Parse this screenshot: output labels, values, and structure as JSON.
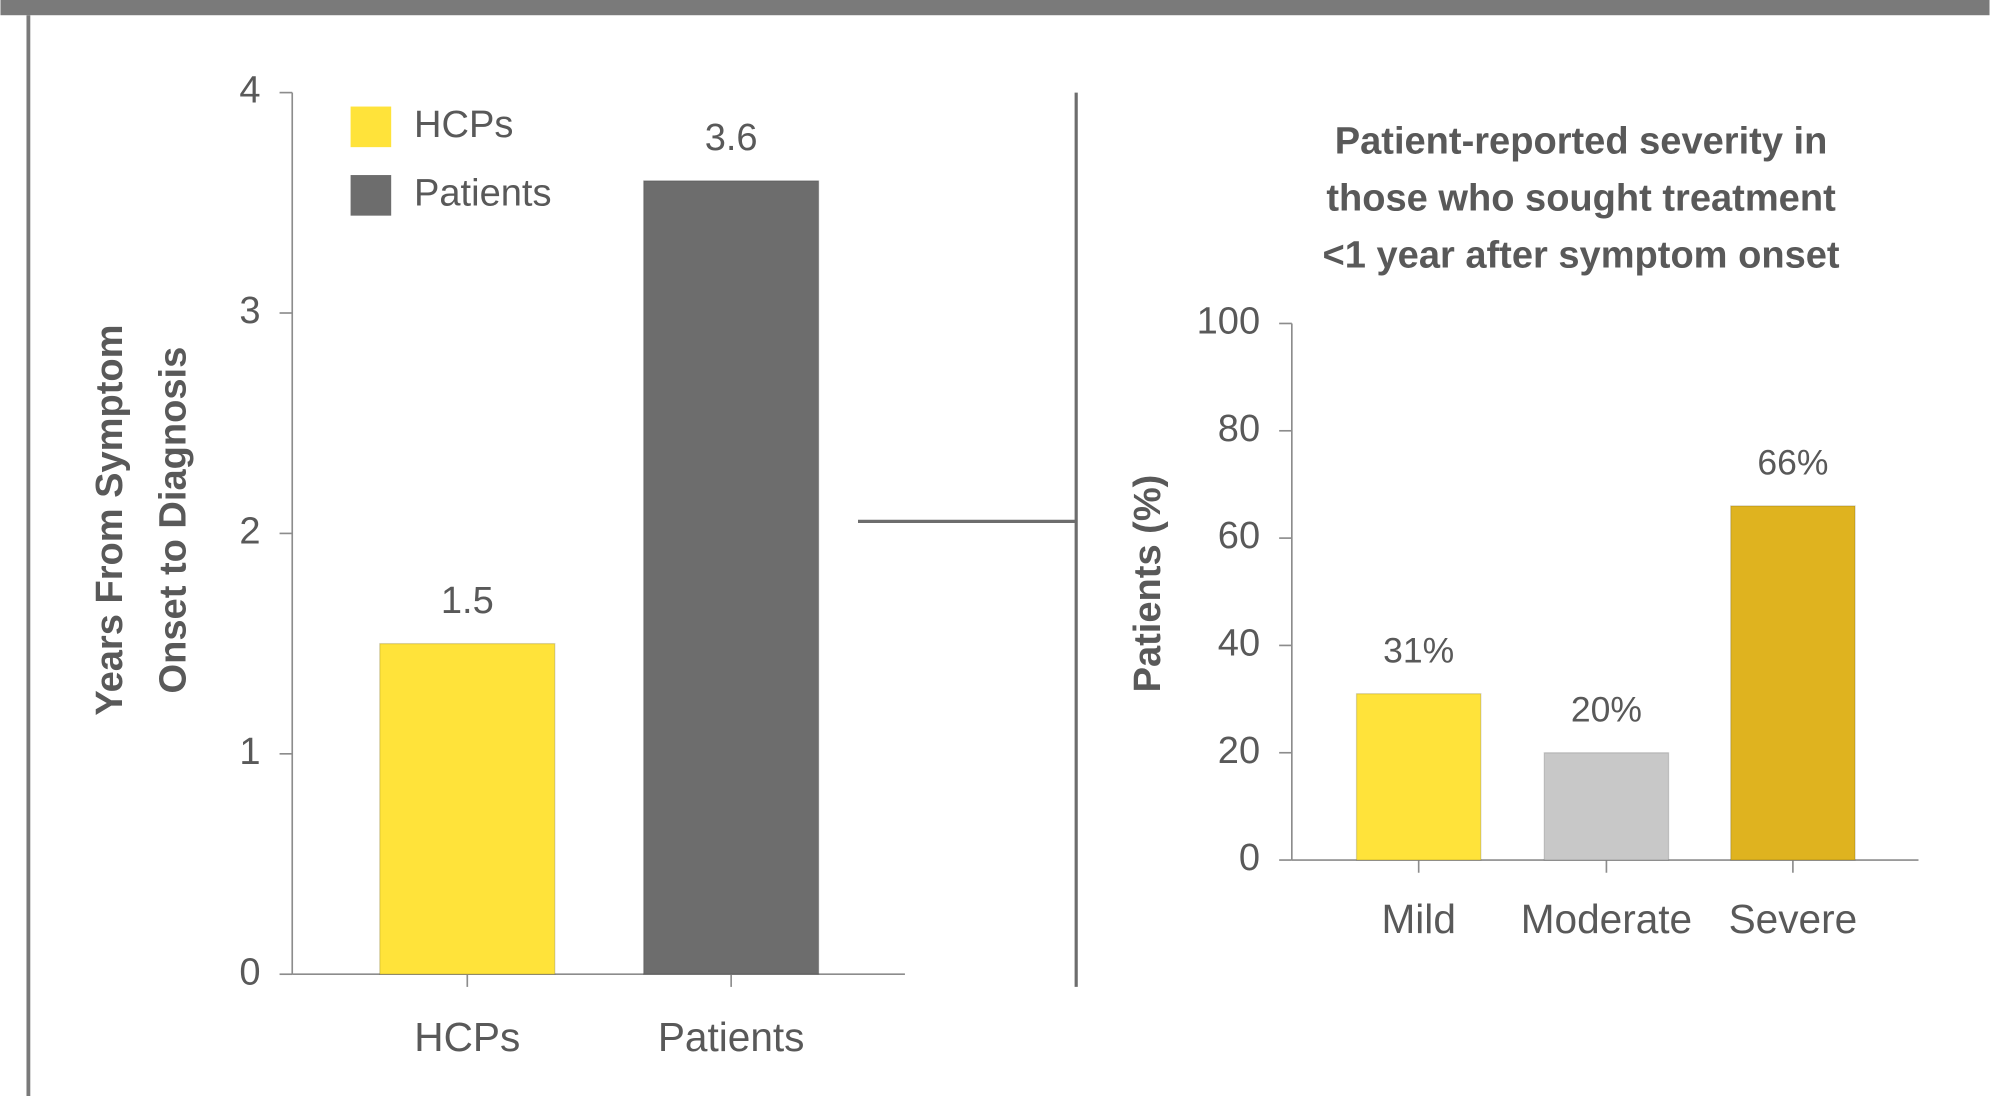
{
  "chart_data": [
    {
      "type": "bar",
      "ylabel": [
        "Years From Symptom",
        "Onset to Diagnosis"
      ],
      "categories": [
        "HCPs",
        "Patients"
      ],
      "series": [
        {
          "name": "HCPs",
          "color": "#ffe33a",
          "values": [
            1.5,
            null
          ]
        },
        {
          "name": "Patients",
          "color": "#6d6d6d",
          "values": [
            null,
            3.6
          ]
        }
      ],
      "ylim": [
        0,
        4
      ],
      "yticks": [
        0,
        1,
        2,
        3,
        4
      ],
      "legend": "upper left"
    },
    {
      "type": "bar",
      "title": [
        "Patient-reported severity in",
        "those who sought treatment",
        "<1 year after symptom onset"
      ],
      "ylabel": "Patients (%)",
      "categories": [
        "Mild",
        "Moderate",
        "Severe"
      ],
      "values": [
        31,
        20,
        66
      ],
      "value_labels": [
        "31%",
        "20%",
        "66%"
      ],
      "colors": [
        "#ffe33a",
        "#c8c8c8",
        "#dfb31f"
      ],
      "ylim": [
        0,
        100
      ],
      "yticks": [
        0,
        20,
        40,
        60,
        80,
        100
      ]
    }
  ]
}
